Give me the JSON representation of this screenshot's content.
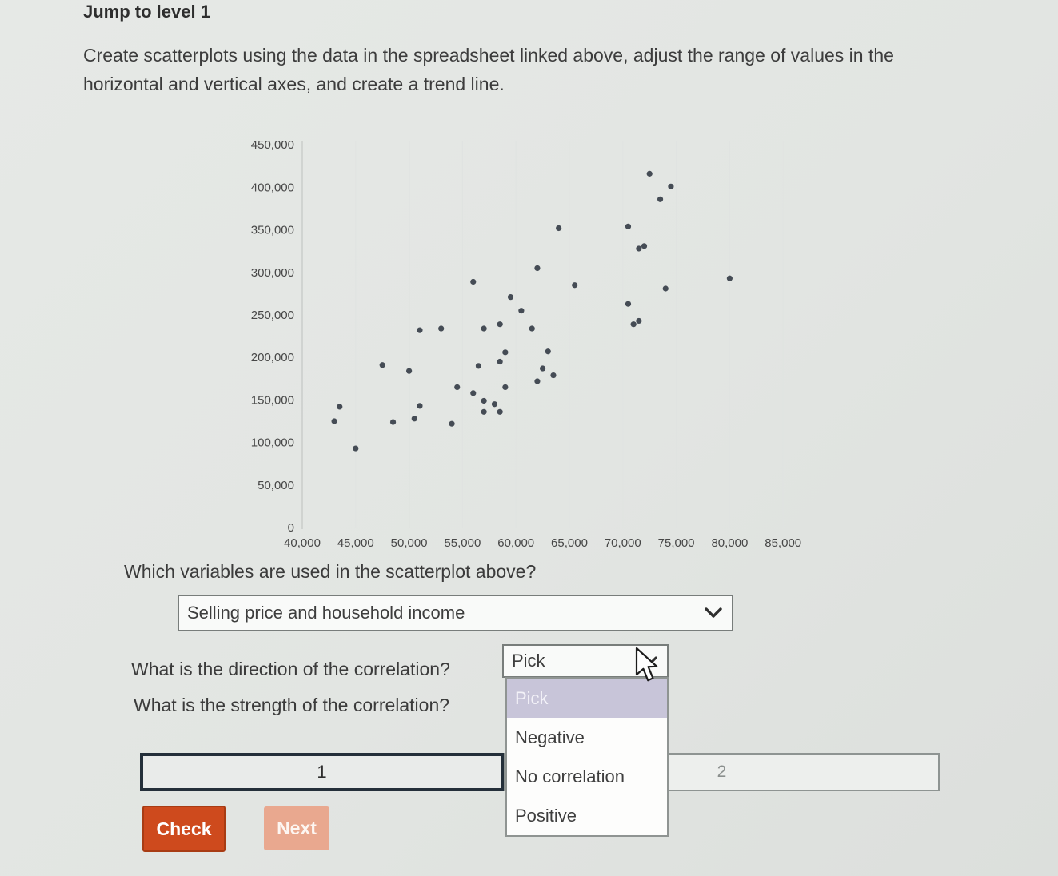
{
  "page": {
    "jump_label": "Jump to level 1",
    "instructions": "Create scatterplots using the data in the spreadsheet linked above, adjust the range of values in the horizontal and vertical axes, and create a trend line."
  },
  "questions": {
    "variables": {
      "label": "Which variables are used in the scatterplot above?",
      "selected": "Selling price and household income"
    },
    "direction": {
      "label": "What is the direction of the correlation?",
      "selected": "Pick"
    },
    "strength": {
      "label": "What is the strength of the correlation?",
      "highlighted": "Pick",
      "options": [
        "Pick",
        "Negative",
        "No correlation",
        "Positive"
      ]
    }
  },
  "progress": {
    "current": "1",
    "next": "2"
  },
  "buttons": {
    "check": "Check",
    "next": "Next"
  },
  "colors": {
    "accent_check": "#ce4a1d",
    "accent_next_disabled": "#e9a88f",
    "highlight_lavender": "#c8c5d9",
    "progress_active_border": "#242f3a",
    "dot": "#454c55",
    "axis": "#c6c9c7",
    "gridline_faint": "#e0e3e1",
    "gridline_visible": "#cdd1cf",
    "tick_text": "#474747"
  },
  "chart_data": {
    "type": "scatter",
    "title": "",
    "xlabel": "",
    "ylabel": "",
    "xlim": [
      40000,
      85000
    ],
    "ylim": [
      0,
      450000
    ],
    "grid": "faint-vertical",
    "legend": "none",
    "x_ticks": [
      40000,
      45000,
      50000,
      55000,
      60000,
      65000,
      70000,
      75000,
      80000,
      85000
    ],
    "x_tick_labels": [
      "40,000",
      "45,000",
      "50,000",
      "55,000",
      "60,000",
      "65,000",
      "70,000",
      "75,000",
      "80,000",
      "85,000"
    ],
    "y_ticks": [
      0,
      50000,
      100000,
      150000,
      200000,
      250000,
      300000,
      350000,
      400000,
      450000
    ],
    "y_tick_labels": [
      "0",
      "50,000",
      "100,000",
      "150,000",
      "200,000",
      "250,000",
      "300,000",
      "350,000",
      "400,000",
      "450,000"
    ],
    "points": [
      [
        72500,
        416000
      ],
      [
        74500,
        401000
      ],
      [
        73500,
        386000
      ],
      [
        70500,
        354000
      ],
      [
        64000,
        352000
      ],
      [
        71500,
        328000
      ],
      [
        72000,
        331000
      ],
      [
        62000,
        305000
      ],
      [
        80000,
        293000
      ],
      [
        65500,
        285000
      ],
      [
        74000,
        281000
      ],
      [
        59500,
        271000
      ],
      [
        70500,
        263000
      ],
      [
        60500,
        255000
      ],
      [
        71000,
        239000
      ],
      [
        71500,
        243000
      ],
      [
        61500,
        234000
      ],
      [
        56000,
        289000
      ],
      [
        58500,
        239000
      ],
      [
        51000,
        232000
      ],
      [
        53000,
        234000
      ],
      [
        57000,
        234000
      ],
      [
        47500,
        191000
      ],
      [
        50000,
        184000
      ],
      [
        56500,
        190000
      ],
      [
        59000,
        206000
      ],
      [
        63000,
        207000
      ],
      [
        58500,
        195000
      ],
      [
        62500,
        187000
      ],
      [
        63500,
        179000
      ],
      [
        62000,
        172000
      ],
      [
        59000,
        165000
      ],
      [
        54500,
        165000
      ],
      [
        56000,
        158000
      ],
      [
        57000,
        149000
      ],
      [
        58000,
        145000
      ],
      [
        57000,
        136000
      ],
      [
        58500,
        136000
      ],
      [
        43500,
        142000
      ],
      [
        43000,
        125000
      ],
      [
        48500,
        124000
      ],
      [
        45000,
        93000
      ],
      [
        51000,
        143000
      ],
      [
        50500,
        128000
      ],
      [
        54000,
        122000
      ]
    ]
  }
}
